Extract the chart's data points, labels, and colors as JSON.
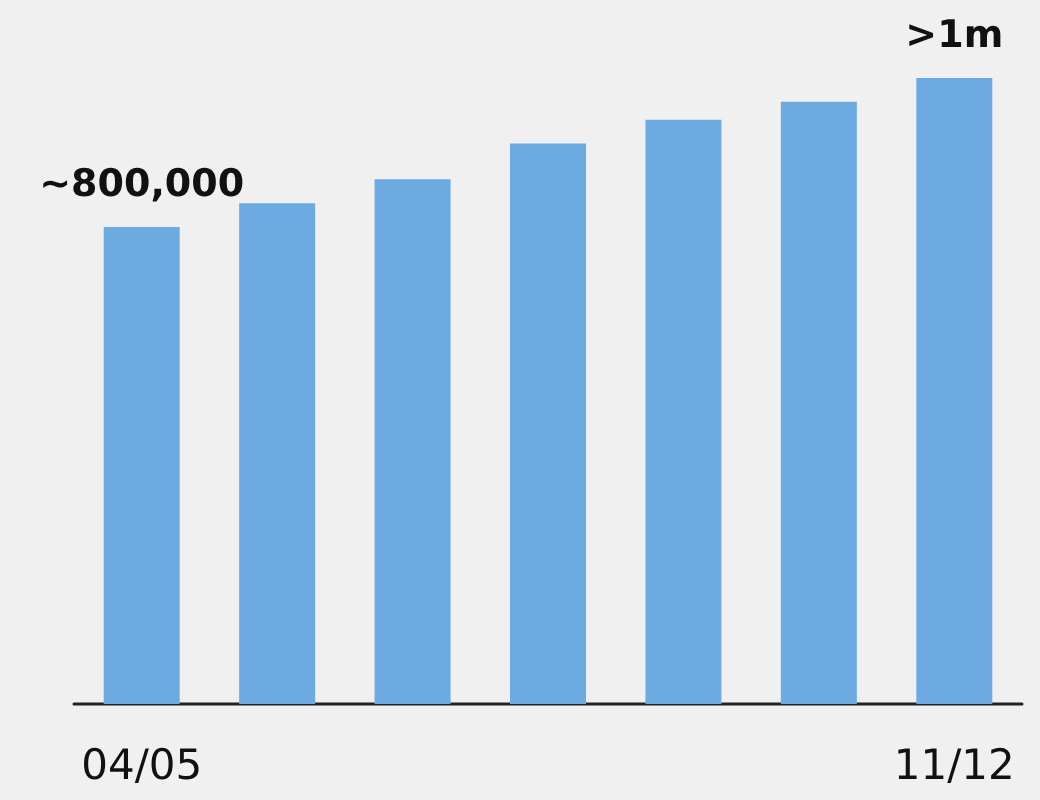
{
  "chart_data": {
    "type": "bar",
    "tick_labels": "x",
    "categories": [
      "04/05",
      null,
      null,
      null,
      null,
      null,
      "11/12"
    ],
    "values": [
      800000,
      840000,
      880000,
      940000,
      980000,
      1010000,
      1050000
    ],
    "value_labels": [
      "~800,000",
      null,
      null,
      null,
      null,
      null,
      ">1m"
    ],
    "color": "#6eaae2"
  }
}
